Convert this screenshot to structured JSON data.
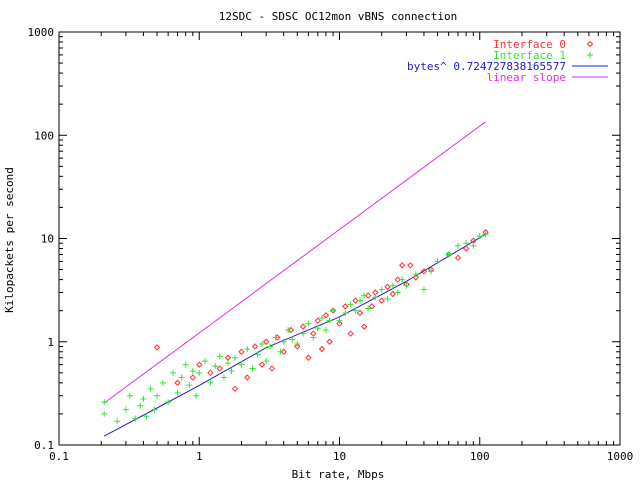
{
  "chart_data": {
    "type": "scatter",
    "title": "12SDC - SDSC OC12mon vBNS connection",
    "xlabel": "Bit rate, Mbps",
    "ylabel": "Kilopackets per second",
    "x_scale": "log",
    "y_scale": "log",
    "xlim": [
      0.1,
      1000
    ],
    "ylim": [
      0.1,
      1000
    ],
    "x_ticks": [
      "0.1",
      "1",
      "10",
      "100",
      "1000"
    ],
    "y_ticks": [
      "0.1",
      "1",
      "10",
      "100",
      "1000"
    ],
    "grid": false,
    "legend_position": "top-right",
    "colors": {
      "interface0": "#ff3030",
      "interface1": "#30e830",
      "fit": "#2020c0",
      "linear": "#e030e0",
      "frame": "#000000"
    },
    "series": [
      {
        "name": "Interface 0",
        "marker": "diamond",
        "points": [
          [
            0.5,
            0.88
          ],
          [
            0.7,
            0.4
          ],
          [
            0.9,
            0.45
          ],
          [
            1.0,
            0.6
          ],
          [
            1.2,
            0.5
          ],
          [
            1.4,
            0.55
          ],
          [
            1.6,
            0.7
          ],
          [
            1.8,
            0.35
          ],
          [
            2.0,
            0.8
          ],
          [
            2.2,
            0.45
          ],
          [
            2.5,
            0.9
          ],
          [
            2.8,
            0.6
          ],
          [
            3.0,
            1.0
          ],
          [
            3.3,
            0.55
          ],
          [
            3.6,
            1.1
          ],
          [
            4.0,
            0.8
          ],
          [
            4.5,
            1.3
          ],
          [
            5.0,
            0.9
          ],
          [
            5.5,
            1.4
          ],
          [
            6.0,
            0.7
          ],
          [
            6.5,
            1.2
          ],
          [
            7.0,
            1.6
          ],
          [
            7.5,
            0.85
          ],
          [
            8.0,
            1.8
          ],
          [
            8.5,
            1.0
          ],
          [
            9.0,
            2.0
          ],
          [
            10,
            1.5
          ],
          [
            11,
            2.2
          ],
          [
            12,
            1.2
          ],
          [
            13,
            2.5
          ],
          [
            14,
            1.9
          ],
          [
            15,
            1.4
          ],
          [
            16,
            2.8
          ],
          [
            17,
            2.2
          ],
          [
            18,
            3.0
          ],
          [
            20,
            2.5
          ],
          [
            22,
            3.4
          ],
          [
            24,
            2.9
          ],
          [
            26,
            4.0
          ],
          [
            28,
            5.5
          ],
          [
            30,
            3.6
          ],
          [
            32,
            5.5
          ],
          [
            35,
            4.2
          ],
          [
            40,
            4.8
          ],
          [
            45,
            5.0
          ],
          [
            60,
            7.0
          ],
          [
            70,
            6.5
          ],
          [
            80,
            8.0
          ],
          [
            90,
            9.5
          ],
          [
            110,
            11.5
          ]
        ]
      },
      {
        "name": "Interface 1",
        "marker": "plus",
        "points": [
          [
            0.21,
            0.26
          ],
          [
            0.21,
            0.2
          ],
          [
            0.26,
            0.17
          ],
          [
            0.3,
            0.22
          ],
          [
            0.32,
            0.3
          ],
          [
            0.35,
            0.18
          ],
          [
            0.38,
            0.24
          ],
          [
            0.4,
            0.28
          ],
          [
            0.42,
            0.19
          ],
          [
            0.45,
            0.35
          ],
          [
            0.48,
            0.22
          ],
          [
            0.5,
            0.3
          ],
          [
            0.55,
            0.4
          ],
          [
            0.6,
            0.26
          ],
          [
            0.65,
            0.5
          ],
          [
            0.7,
            0.32
          ],
          [
            0.75,
            0.45
          ],
          [
            0.8,
            0.6
          ],
          [
            0.85,
            0.38
          ],
          [
            0.9,
            0.52
          ],
          [
            0.95,
            0.3
          ],
          [
            1.0,
            0.5
          ],
          [
            1.1,
            0.65
          ],
          [
            1.2,
            0.4
          ],
          [
            1.3,
            0.58
          ],
          [
            1.4,
            0.72
          ],
          [
            1.5,
            0.45
          ],
          [
            1.6,
            0.62
          ],
          [
            1.7,
            0.52
          ],
          [
            1.8,
            0.7
          ],
          [
            2.0,
            0.6
          ],
          [
            2.2,
            0.85
          ],
          [
            2.4,
            0.55
          ],
          [
            2.6,
            0.75
          ],
          [
            2.8,
            0.95
          ],
          [
            3.0,
            0.65
          ],
          [
            3.2,
            0.9
          ],
          [
            3.5,
            1.1
          ],
          [
            3.8,
            0.8
          ],
          [
            4.0,
            1.0
          ],
          [
            4.3,
            1.3
          ],
          [
            4.6,
            1.05
          ],
          [
            5.0,
            0.95
          ],
          [
            5.5,
            1.2
          ],
          [
            6.0,
            1.5
          ],
          [
            6.5,
            1.1
          ],
          [
            7.0,
            1.35
          ],
          [
            7.5,
            1.7
          ],
          [
            8.0,
            1.3
          ],
          [
            8.5,
            1.6
          ],
          [
            9.0,
            2.0
          ],
          [
            10,
            1.6
          ],
          [
            11,
            1.9
          ],
          [
            12,
            2.3
          ],
          [
            13,
            2.0
          ],
          [
            14,
            2.5
          ],
          [
            15,
            2.8
          ],
          [
            16,
            2.1
          ],
          [
            18,
            2.7
          ],
          [
            20,
            3.2
          ],
          [
            22,
            2.6
          ],
          [
            24,
            3.5
          ],
          [
            26,
            3.0
          ],
          [
            28,
            4.0
          ],
          [
            30,
            3.5
          ],
          [
            35,
            4.5
          ],
          [
            40,
            3.2
          ],
          [
            45,
            4.8
          ],
          [
            50,
            6.0
          ],
          [
            60,
            7.0
          ],
          [
            70,
            8.5
          ],
          [
            80,
            9.0
          ],
          [
            90,
            8.5
          ],
          [
            100,
            10.5
          ],
          [
            110,
            11.0
          ]
        ]
      }
    ],
    "lines": [
      {
        "name": "bytes^ 0.724727838165577",
        "x": [
          0.21,
          0.5,
          1,
          3,
          10,
          30,
          110
        ],
        "y": [
          0.122,
          0.228,
          0.378,
          0.875,
          1.74,
          3.85,
          11.0
        ]
      },
      {
        "name": "linear slope",
        "x": [
          0.21,
          110
        ],
        "y": [
          0.255,
          135
        ]
      }
    ]
  }
}
